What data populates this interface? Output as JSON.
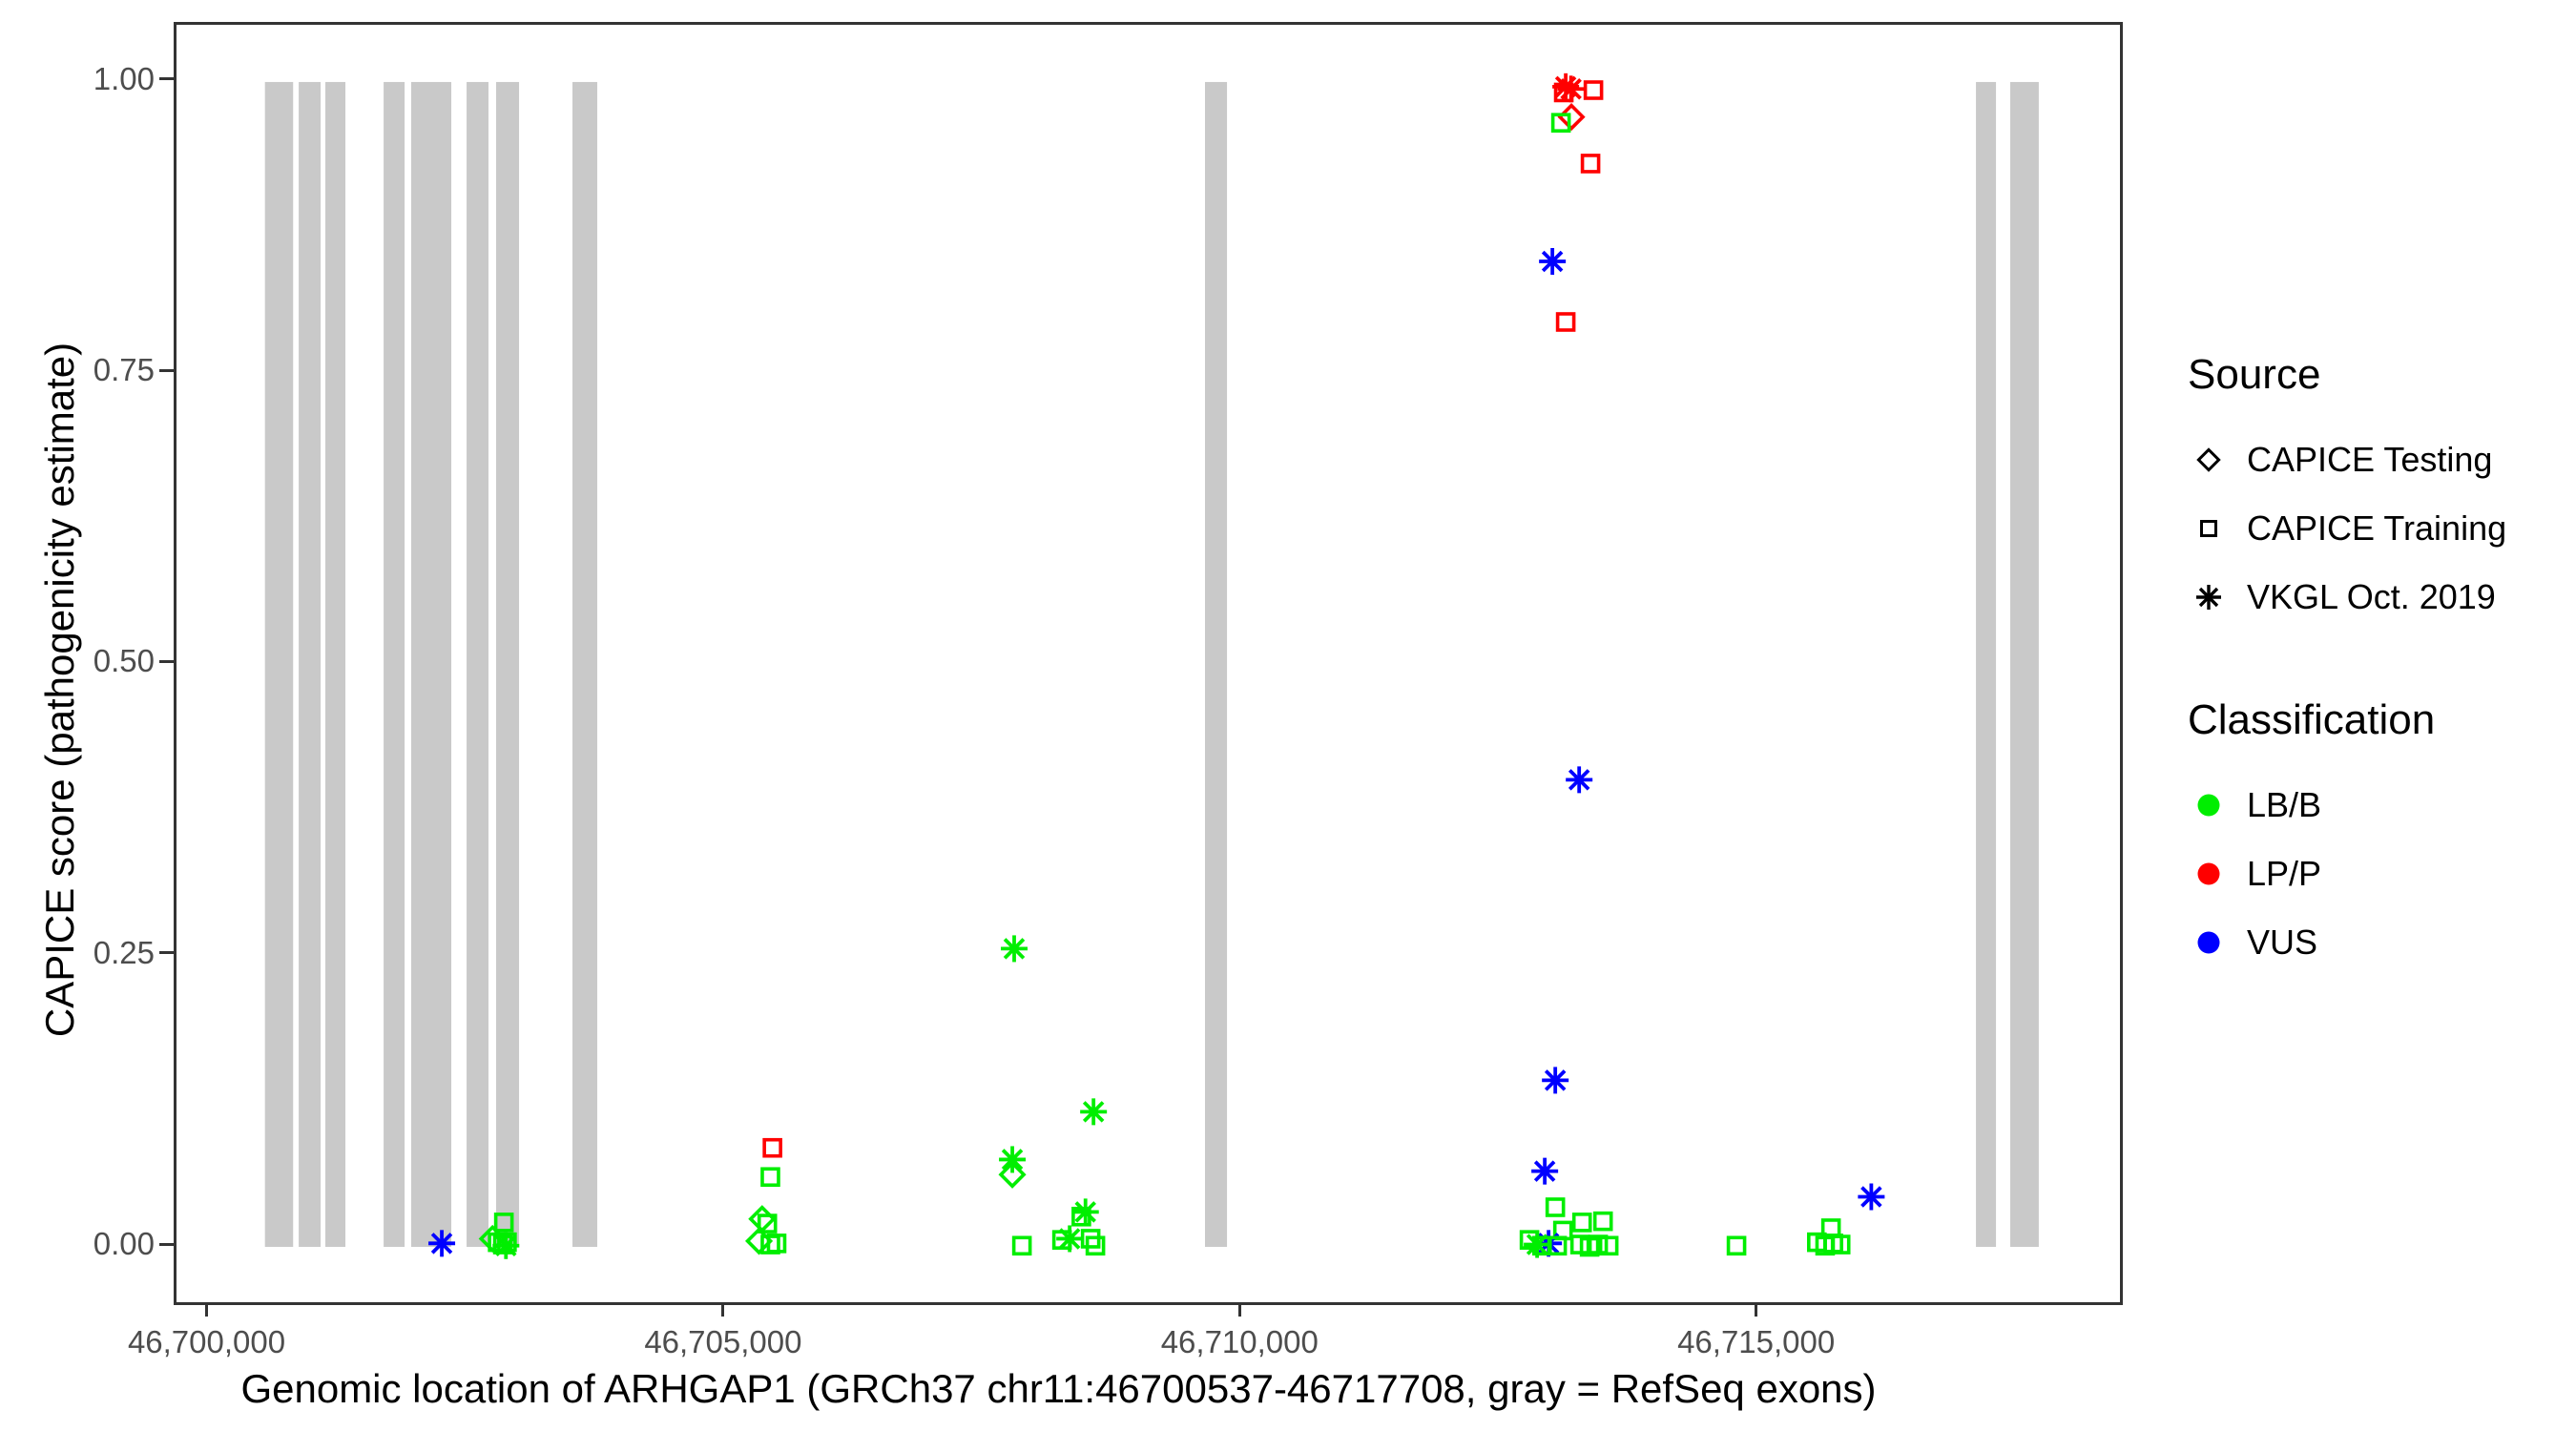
{
  "chart_data": {
    "type": "scatter",
    "title": "",
    "xlabel": "Genomic location of ARHGAP1 (GRCh37 chr11:46700537-46717708, gray = RefSeq exons)",
    "ylabel": "CAPICE score (pathogenicity estimate)",
    "grid": "off",
    "legend_position": "right",
    "x_axis": {
      "range": [
        46699681,
        46718494
      ],
      "ticks": [
        {
          "value": 46700000,
          "label": "46,700,000"
        },
        {
          "value": 46705000,
          "label": "46,705,000"
        },
        {
          "value": 46710000,
          "label": "46,710,000"
        },
        {
          "value": 46715000,
          "label": "46,715,000"
        }
      ]
    },
    "y_axis": {
      "range": [
        -0.0475,
        1.0491
      ],
      "ticks": [
        {
          "value": 0.0,
          "label": "0.00"
        },
        {
          "value": 0.25,
          "label": "0.25"
        },
        {
          "value": 0.5,
          "label": "0.50"
        },
        {
          "value": 0.75,
          "label": "0.75"
        },
        {
          "value": 1.0,
          "label": "1.00"
        }
      ]
    },
    "exon_color": "#c9c9c9",
    "exons": [
      [
        46700537,
        46700810
      ],
      [
        46700864,
        46701076
      ],
      [
        46701122,
        46701316
      ],
      [
        46701686,
        46701889
      ],
      [
        46701953,
        46702341
      ],
      [
        46702489,
        46702701
      ],
      [
        46702775,
        46702997
      ],
      [
        46703514,
        46703754
      ],
      [
        46709637,
        46709850
      ],
      [
        46717100,
        46717294
      ],
      [
        46717432,
        46717708
      ]
    ],
    "classification_colors": {
      "LB/B": "#00ee00",
      "LP/P": "#ff0000",
      "VUS": "#0000ff"
    },
    "source_shapes": {
      "CAPICE Testing": "diamond",
      "CAPICE Training": "square",
      "VKGL Oct. 2019": "asterisk"
    },
    "points_format": [
      "genomic_position",
      "capice_score",
      "source",
      "classification"
    ],
    "points": [
      [
        46702249,
        0.003,
        "VKGL Oct. 2019",
        "VUS"
      ],
      [
        46702850,
        0.021,
        "CAPICE Training",
        "LB/B"
      ],
      [
        46702740,
        0.007,
        "CAPICE Testing",
        "LB/B"
      ],
      [
        46702790,
        0.004,
        "CAPICE Training",
        "LB/B"
      ],
      [
        46702840,
        0.002,
        "CAPICE Training",
        "LB/B"
      ],
      [
        46702880,
        0.004,
        "CAPICE Training",
        "LB/B"
      ],
      [
        46702870,
        0.001,
        "VKGL Oct. 2019",
        "LB/B"
      ],
      [
        46705450,
        0.085,
        "CAPICE Training",
        "LP/P"
      ],
      [
        46705430,
        0.06,
        "CAPICE Training",
        "LB/B"
      ],
      [
        46705350,
        0.024,
        "CAPICE Testing",
        "LB/B"
      ],
      [
        46705400,
        0.02,
        "CAPICE Training",
        "LB/B"
      ],
      [
        46705320,
        0.005,
        "CAPICE Testing",
        "LB/B"
      ],
      [
        46705430,
        0.002,
        "CAPICE Training",
        "LB/B"
      ],
      [
        46705490,
        0.003,
        "CAPICE Training",
        "LB/B"
      ],
      [
        46707790,
        0.256,
        "VKGL Oct. 2019",
        "LB/B"
      ],
      [
        46707772,
        0.075,
        "VKGL Oct. 2019",
        "LB/B"
      ],
      [
        46707772,
        0.062,
        "CAPICE Testing",
        "LB/B"
      ],
      [
        46707865,
        0.001,
        "CAPICE Training",
        "LB/B"
      ],
      [
        46708253,
        0.006,
        "CAPICE Training",
        "LB/B"
      ],
      [
        46708327,
        0.007,
        "VKGL Oct. 2019",
        "LB/B"
      ],
      [
        46708558,
        0.116,
        "VKGL Oct. 2019",
        "LB/B"
      ],
      [
        46708480,
        0.03,
        "VKGL Oct. 2019",
        "LB/B"
      ],
      [
        46708440,
        0.026,
        "CAPICE Training",
        "LB/B"
      ],
      [
        46708530,
        0.007,
        "CAPICE Training",
        "LB/B"
      ],
      [
        46708576,
        0.001,
        "CAPICE Training",
        "LB/B"
      ],
      [
        46713129,
        0.996,
        "VKGL Oct. 2019",
        "LP/P"
      ],
      [
        46713180,
        0.994,
        "VKGL Oct. 2019",
        "LP/P"
      ],
      [
        46713110,
        0.991,
        "CAPICE Training",
        "LP/P"
      ],
      [
        46713397,
        0.993,
        "CAPICE Training",
        "LP/P"
      ],
      [
        46713184,
        0.97,
        "CAPICE Testing",
        "LP/P"
      ],
      [
        46713083,
        0.965,
        "CAPICE Training",
        "LB/B"
      ],
      [
        46713369,
        0.93,
        "CAPICE Training",
        "LP/P"
      ],
      [
        46713000,
        0.846,
        "VKGL Oct. 2019",
        "VUS"
      ],
      [
        46713129,
        0.794,
        "CAPICE Training",
        "LP/P"
      ],
      [
        46713259,
        0.401,
        "VKGL Oct. 2019",
        "VUS"
      ],
      [
        46713028,
        0.143,
        "VKGL Oct. 2019",
        "VUS"
      ],
      [
        46712926,
        0.065,
        "VKGL Oct. 2019",
        "VUS"
      ],
      [
        46713028,
        0.034,
        "CAPICE Training",
        "LB/B"
      ],
      [
        46713287,
        0.021,
        "CAPICE Training",
        "LB/B"
      ],
      [
        46713490,
        0.022,
        "CAPICE Training",
        "LB/B"
      ],
      [
        46713102,
        0.014,
        "CAPICE Training",
        "LB/B"
      ],
      [
        46712963,
        0.003,
        "VKGL Oct. 2019",
        "VUS"
      ],
      [
        46712852,
        0.002,
        "VKGL Oct. 2019",
        "LB/B"
      ],
      [
        46712778,
        0.006,
        "CAPICE Training",
        "LB/B"
      ],
      [
        46712900,
        0.001,
        "CAPICE Training",
        "LB/B"
      ],
      [
        46713046,
        0.001,
        "CAPICE Training",
        "LB/B"
      ],
      [
        46713268,
        0.002,
        "CAPICE Training",
        "LB/B"
      ],
      [
        46713360,
        0.0,
        "CAPICE Training",
        "LB/B"
      ],
      [
        46713443,
        0.002,
        "CAPICE Training",
        "LB/B"
      ],
      [
        46713545,
        0.001,
        "CAPICE Training",
        "LB/B"
      ],
      [
        46714782,
        0.001,
        "CAPICE Training",
        "LB/B"
      ],
      [
        46715697,
        0.016,
        "CAPICE Training",
        "LB/B"
      ],
      [
        46715560,
        0.004,
        "CAPICE Training",
        "LB/B"
      ],
      [
        46715640,
        0.001,
        "CAPICE Training",
        "LB/B"
      ],
      [
        46715720,
        0.003,
        "CAPICE Training",
        "LB/B"
      ],
      [
        46715790,
        0.002,
        "CAPICE Training",
        "LB/B"
      ],
      [
        46716087,
        0.043,
        "VKGL Oct. 2019",
        "VUS"
      ]
    ]
  },
  "legend": {
    "source": {
      "title": "Source",
      "items": [
        {
          "label": "CAPICE Testing",
          "shape": "diamond"
        },
        {
          "label": "CAPICE Training",
          "shape": "square"
        },
        {
          "label": "VKGL Oct. 2019",
          "shape": "asterisk"
        }
      ]
    },
    "classification": {
      "title": "Classification",
      "items": [
        {
          "label": "LB/B",
          "color": "#00ee00"
        },
        {
          "label": "LP/P",
          "color": "#ff0000"
        },
        {
          "label": "VUS",
          "color": "#0000ff"
        }
      ]
    }
  }
}
